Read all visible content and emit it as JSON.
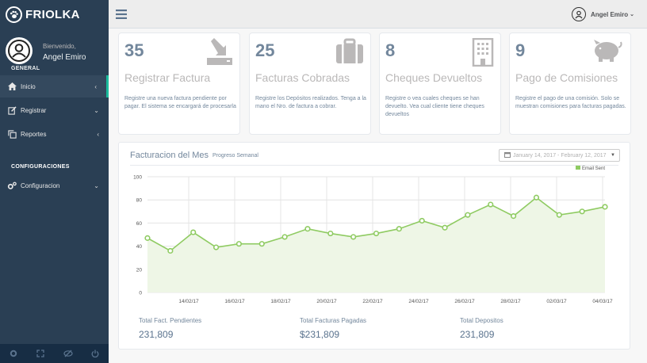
{
  "sidebar": {
    "brand": "FRIOLKA",
    "welcome": "Bienvenido,",
    "user_name": "Angel Emiro",
    "role": "GENERAL",
    "section_title": "CONFIGURACIONES",
    "items": [
      {
        "label": "Inicio",
        "icon": "home-icon"
      },
      {
        "label": "Registrar",
        "icon": "edit-icon"
      },
      {
        "label": "Reportes",
        "icon": "clone-icon"
      },
      {
        "label": "Configuracion",
        "icon": "cogs-icon"
      }
    ],
    "footer_icons": [
      "settings-icon",
      "fullscreen-icon",
      "eye-slash-icon",
      "power-icon"
    ]
  },
  "topbar": {
    "user_label": "Angel Emiro"
  },
  "tiles": [
    {
      "count": "35",
      "title": "Registrar Factura",
      "description": "Registre una nueva factura pendiente por pagar. El sistema se encargará de procesarla",
      "icon": "download-icon"
    },
    {
      "count": "25",
      "title": "Facturas Cobradas",
      "description": "Registre los Depósitos realizados. Tenga a la mano el Nro. de factura a cobrar.",
      "icon": "briefcase-icon"
    },
    {
      "count": "8",
      "title": "Cheques Devueltos",
      "description": "Registre o vea cuales cheques se han devuelto. Vea cual cliente tiene cheques devueltos",
      "icon": "building-icon"
    },
    {
      "count": "9",
      "title": "Pago de Comisiones",
      "description": "Registre el pago de una comisión. Solo se muestran comisiones para facturas pagadas.",
      "icon": "piggy-bank-icon"
    }
  ],
  "panel": {
    "title": "Facturacion del Mes",
    "subtitle": "Progreso Semanal",
    "date_range": "January 14, 2017 - February 12, 2017"
  },
  "chart_data": {
    "type": "area",
    "title": "",
    "xlabel": "",
    "ylabel": "",
    "ylim": [
      0,
      100
    ],
    "yticks": [
      0,
      20,
      40,
      60,
      80,
      100
    ],
    "x_tick_labels": [
      "14/02/17",
      "16/02/17",
      "18/02/17",
      "20/02/17",
      "22/02/17",
      "24/02/17",
      "26/02/17",
      "28/02/17",
      "02/03/17",
      "04/03/17"
    ],
    "grid": true,
    "legend_position": "top-right",
    "colors": {
      "line": "#8fcb62",
      "fill": "#eef6e6"
    },
    "series": [
      {
        "name": "Email Sent",
        "values": [
          47,
          36,
          52,
          39,
          42,
          42,
          48,
          55,
          51,
          48,
          51,
          55,
          62,
          56,
          67,
          76,
          66,
          82,
          67,
          70,
          74
        ]
      }
    ]
  },
  "stats": [
    {
      "label": "Total Fact. Pendientes",
      "value": "231,809"
    },
    {
      "label": "Total Facturas Pagadas",
      "value": "$231,809"
    },
    {
      "label": "Total Depositos",
      "value": "231,809"
    }
  ]
}
